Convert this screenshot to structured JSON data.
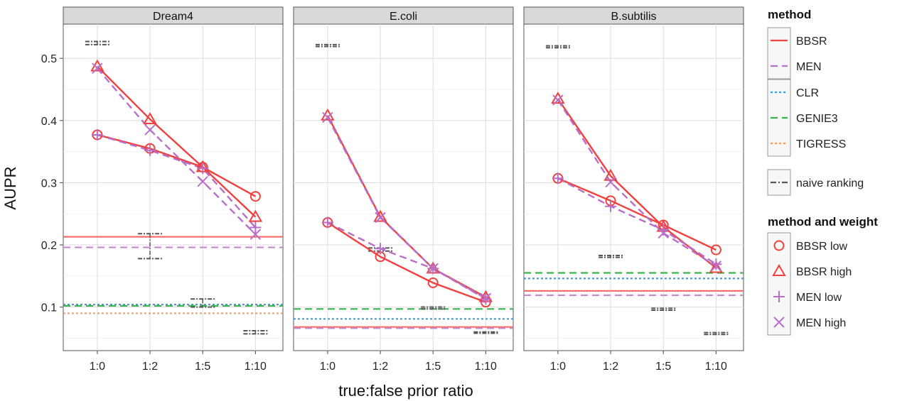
{
  "chart_data": {
    "type": "line",
    "ylabel": "AUPR",
    "xlabel": "true:false prior ratio",
    "categories": [
      "1:0",
      "1:2",
      "1:5",
      "1:10"
    ],
    "ylim": [
      0.03,
      0.555
    ],
    "yticks": [
      0.1,
      0.2,
      0.3,
      0.4,
      0.5
    ],
    "grid": true,
    "legend_position": "right",
    "colors": {
      "bbsr": "#f0413e",
      "men": "#b86fc9",
      "clr": "#3a9fe0",
      "genie3": "#3ab54a",
      "tigress": "#f79a5a",
      "naive": "#555555"
    },
    "legend": {
      "method_title": "method",
      "method_items": [
        {
          "key": "bbsr",
          "label": "BBSR",
          "dash": "solid"
        },
        {
          "key": "men",
          "label": "MEN",
          "dash": "dashed"
        },
        {
          "key": "clr",
          "label": "CLR",
          "dash": "dotted"
        },
        {
          "key": "genie3",
          "label": "GENIE3",
          "dash": "dashed"
        },
        {
          "key": "tigress",
          "label": "TIGRESS",
          "dash": "dotted"
        },
        {
          "key": "naive",
          "label": "naive ranking",
          "dash": "dotdash"
        }
      ],
      "weight_title": "method and weight",
      "weight_items": [
        {
          "key": "bbsr",
          "label": "BBSR low",
          "shape": "circle"
        },
        {
          "key": "bbsr",
          "label": "BBSR high",
          "shape": "triangle"
        },
        {
          "key": "men",
          "label": "MEN low",
          "shape": "plus"
        },
        {
          "key": "men",
          "label": "MEN high",
          "shape": "cross"
        }
      ]
    },
    "panels": [
      {
        "title": "Dream4",
        "series": [
          {
            "name": "BBSR low",
            "method": "bbsr",
            "shape": "circle",
            "values": [
              0.377,
              0.355,
              0.325,
              0.278
            ]
          },
          {
            "name": "BBSR high",
            "method": "bbsr",
            "shape": "triangle",
            "values": [
              0.487,
              0.402,
              0.325,
              0.245
            ]
          },
          {
            "name": "MEN low",
            "method": "men",
            "shape": "plus",
            "values": [
              0.377,
              0.352,
              0.323,
              0.228
            ]
          },
          {
            "name": "MEN high",
            "method": "men",
            "shape": "cross",
            "values": [
              0.484,
              0.385,
              0.302,
              0.217
            ]
          }
        ],
        "baselines": [
          {
            "method": "bbsr",
            "value": 0.213
          },
          {
            "method": "men",
            "value": 0.196
          },
          {
            "method": "clr",
            "value": 0.104
          },
          {
            "method": "genie3",
            "value": 0.102
          },
          {
            "method": "tigress",
            "value": 0.09
          }
        ],
        "naive_ranking": [
          {
            "x": 0,
            "low": 0.522,
            "high": 0.527
          },
          {
            "x": 1,
            "low": 0.178,
            "high": 0.218
          },
          {
            "x": 2,
            "low": 0.1,
            "high": 0.113
          },
          {
            "x": 3,
            "low": 0.057,
            "high": 0.062
          }
        ]
      },
      {
        "title": "E.coli",
        "series": [
          {
            "name": "BBSR low",
            "method": "bbsr",
            "shape": "circle",
            "values": [
              0.236,
              0.181,
              0.139,
              0.108
            ]
          },
          {
            "name": "BBSR high",
            "method": "bbsr",
            "shape": "triangle",
            "values": [
              0.408,
              0.245,
              0.162,
              0.116
            ]
          },
          {
            "name": "MEN low",
            "method": "men",
            "shape": "plus",
            "values": [
              0.236,
              0.194,
              0.162,
              0.113
            ]
          },
          {
            "name": "MEN high",
            "method": "men",
            "shape": "cross",
            "values": [
              0.405,
              0.244,
              0.162,
              0.114
            ]
          }
        ],
        "baselines": [
          {
            "method": "genie3",
            "value": 0.097
          },
          {
            "method": "clr",
            "value": 0.081
          },
          {
            "method": "bbsr",
            "value": 0.068
          },
          {
            "method": "men",
            "value": 0.066
          }
        ],
        "naive_ranking": [
          {
            "x": 0,
            "low": 0.519,
            "high": 0.522
          },
          {
            "x": 1,
            "low": 0.19,
            "high": 0.195
          },
          {
            "x": 2,
            "low": 0.097,
            "high": 0.1
          },
          {
            "x": 3,
            "low": 0.058,
            "high": 0.06
          }
        ]
      },
      {
        "title": "B.subtilis",
        "series": [
          {
            "name": "BBSR low",
            "method": "bbsr",
            "shape": "circle",
            "values": [
              0.307,
              0.271,
              0.232,
              0.192
            ]
          },
          {
            "name": "BBSR high",
            "method": "bbsr",
            "shape": "triangle",
            "values": [
              0.435,
              0.311,
              0.229,
              0.163
            ]
          },
          {
            "name": "MEN low",
            "method": "men",
            "shape": "plus",
            "values": [
              0.307,
              0.262,
              0.224,
              0.169
            ]
          },
          {
            "name": "MEN high",
            "method": "men",
            "shape": "cross",
            "values": [
              0.433,
              0.301,
              0.219,
              0.166
            ]
          }
        ],
        "baselines": [
          {
            "method": "genie3",
            "value": 0.155
          },
          {
            "method": "clr",
            "value": 0.146
          },
          {
            "method": "bbsr",
            "value": 0.126
          },
          {
            "method": "men",
            "value": 0.119
          }
        ],
        "naive_ranking": [
          {
            "x": 0,
            "low": 0.517,
            "high": 0.52
          },
          {
            "x": 1,
            "low": 0.18,
            "high": 0.183
          },
          {
            "x": 2,
            "low": 0.095,
            "high": 0.098
          },
          {
            "x": 3,
            "low": 0.056,
            "high": 0.059
          }
        ]
      }
    ]
  }
}
